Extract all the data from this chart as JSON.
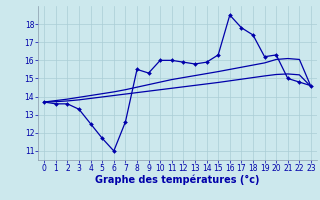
{
  "xlabel": "Graphe des températures (°c)",
  "background_color": "#cce8ed",
  "grid_color": "#aacdd6",
  "line_color": "#0000aa",
  "y_jagged": [
    13.7,
    13.6,
    13.6,
    13.3,
    12.5,
    11.7,
    11.0,
    12.6,
    15.5,
    15.3,
    16.0,
    16.0,
    15.9,
    15.8,
    15.9,
    16.3,
    18.5,
    17.8,
    17.4,
    16.2,
    16.3,
    15.0,
    14.8,
    14.6
  ],
  "y_smooth_upper": [
    13.7,
    13.78,
    13.86,
    13.96,
    14.06,
    14.16,
    14.26,
    14.38,
    14.52,
    14.66,
    14.8,
    14.94,
    15.05,
    15.16,
    15.27,
    15.38,
    15.5,
    15.62,
    15.74,
    15.86,
    16.05,
    16.1,
    16.05,
    14.55
  ],
  "y_smooth_lower": [
    13.7,
    13.72,
    13.76,
    13.82,
    13.9,
    13.98,
    14.06,
    14.14,
    14.22,
    14.3,
    14.38,
    14.46,
    14.54,
    14.62,
    14.7,
    14.78,
    14.87,
    14.96,
    15.05,
    15.14,
    15.22,
    15.25,
    15.2,
    14.55
  ],
  "ylim": [
    10.5,
    19.0
  ],
  "xlim": [
    -0.5,
    23.5
  ],
  "yticks": [
    11,
    12,
    13,
    14,
    15,
    16,
    17,
    18
  ],
  "xticks": [
    0,
    1,
    2,
    3,
    4,
    5,
    6,
    7,
    8,
    9,
    10,
    11,
    12,
    13,
    14,
    15,
    16,
    17,
    18,
    19,
    20,
    21,
    22,
    23
  ],
  "xlabel_fontsize": 7,
  "tick_fontsize": 5.5,
  "marker_size": 2.0,
  "line_width": 0.9
}
